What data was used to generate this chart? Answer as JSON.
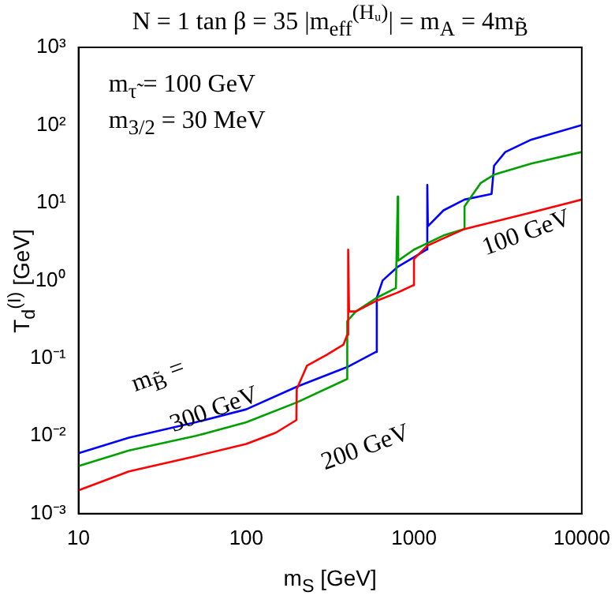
{
  "chart_data": {
    "type": "line",
    "title": "N = 1  tan β = 35  |m$_{eff}$$^{(Hᵤ)}$| = m$_{A}$ = 4m$_{B̃}$",
    "xlabel": "m$_{S}$ [GeV]",
    "ylabel": "T$_{d}$$^{(I)}$ [GeV]",
    "log": "xy",
    "grid": false,
    "legend": false,
    "marker": "none",
    "line_style": "solid",
    "xlim": [
      10,
      10000
    ],
    "xticks": [
      10,
      100,
      1000,
      10000
    ],
    "ylim": [
      0.001,
      1000
    ],
    "yticks": [
      {
        "value": 0.001,
        "label": "10⁻³"
      },
      {
        "value": 0.01,
        "label": "10⁻²"
      },
      {
        "value": 0.1,
        "label": "10⁻¹"
      },
      {
        "value": 1,
        "label": "10⁰"
      },
      {
        "value": 10,
        "label": "10¹"
      },
      {
        "value": 100,
        "label": "10²"
      },
      {
        "value": 1000,
        "label": "10³"
      }
    ],
    "series": [
      {
        "color": "#ff0000",
        "x": [
          10,
          20,
          50,
          100,
          150,
          199,
          200,
          230,
          300,
          380,
          400,
          405,
          410,
          450,
          600,
          800,
          990,
          1000,
          1200,
          1500,
          2000,
          5000,
          10000
        ],
        "values": [
          0.002,
          0.0035,
          0.0055,
          0.0079,
          0.011,
          0.016,
          0.04,
          0.08,
          0.11,
          0.15,
          0.2,
          2.5,
          0.4,
          0.4,
          0.55,
          0.7,
          0.87,
          1.9,
          2.8,
          3.5,
          4.6,
          7.5,
          11
        ]
      },
      {
        "color": "#00a000",
        "x": [
          10,
          20,
          50,
          100,
          200,
          399,
          400,
          450,
          600,
          780,
          800,
          805,
          1000,
          1500,
          1990,
          2000,
          2500,
          3000,
          5000,
          10000
        ],
        "values": [
          0.0041,
          0.0065,
          0.01,
          0.015,
          0.027,
          0.054,
          0.3,
          0.4,
          0.6,
          0.8,
          12,
          1.8,
          2.5,
          3.8,
          4.6,
          9,
          18,
          23,
          32,
          45
        ]
      },
      {
        "color": "#0000ff",
        "x": [
          10,
          20,
          50,
          100,
          200,
          400,
          590,
          600,
          650,
          800,
          1000,
          1190,
          1200,
          1210,
          1500,
          2000,
          2900,
          3000,
          3500,
          5000,
          10000
        ],
        "values": [
          0.006,
          0.0095,
          0.015,
          0.022,
          0.043,
          0.077,
          0.12,
          0.6,
          1.0,
          1.5,
          2.0,
          2.5,
          17,
          5,
          8,
          11,
          13,
          30,
          45,
          65,
          100
        ]
      }
    ],
    "annotations": [
      "m$_{τ̃}$ = 100 GeV",
      "m$_{3/2}$ = 30 MeV",
      "m$_{B̃}$ =",
      "300 GeV",
      "200 GeV",
      "100 GeV"
    ]
  }
}
